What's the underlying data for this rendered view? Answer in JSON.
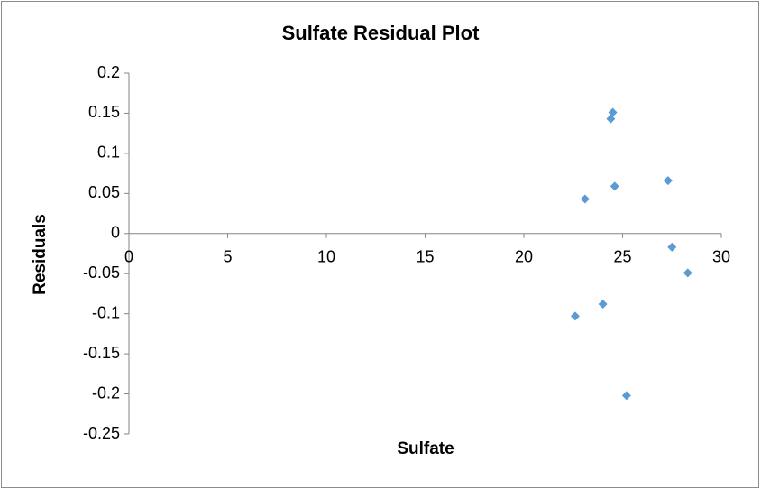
{
  "chart_data": {
    "type": "scatter",
    "title": "Sulfate Residual Plot",
    "x_label": "Sulfate",
    "y_label": "Residuals",
    "series": [
      {
        "name": "Residuals",
        "color": "#5b9bd5",
        "x": [
          24.5,
          24.4,
          24.6,
          23.1,
          27.3,
          27.5,
          28.3,
          22.6,
          24.0,
          25.2
        ],
        "values": [
          0.151,
          0.143,
          0.059,
          0.043,
          0.066,
          -0.017,
          -0.049,
          -0.103,
          -0.088,
          -0.202
        ]
      }
    ],
    "xlim": [
      0,
      30
    ],
    "xticks": [
      0,
      5,
      10,
      15,
      20,
      25,
      30
    ],
    "ylim": [
      -0.25,
      0.2
    ],
    "yticks": [
      0.2,
      0.15,
      0.1,
      0.05,
      0,
      -0.05,
      -0.1,
      -0.15,
      -0.2,
      -0.25
    ],
    "grid": false
  }
}
